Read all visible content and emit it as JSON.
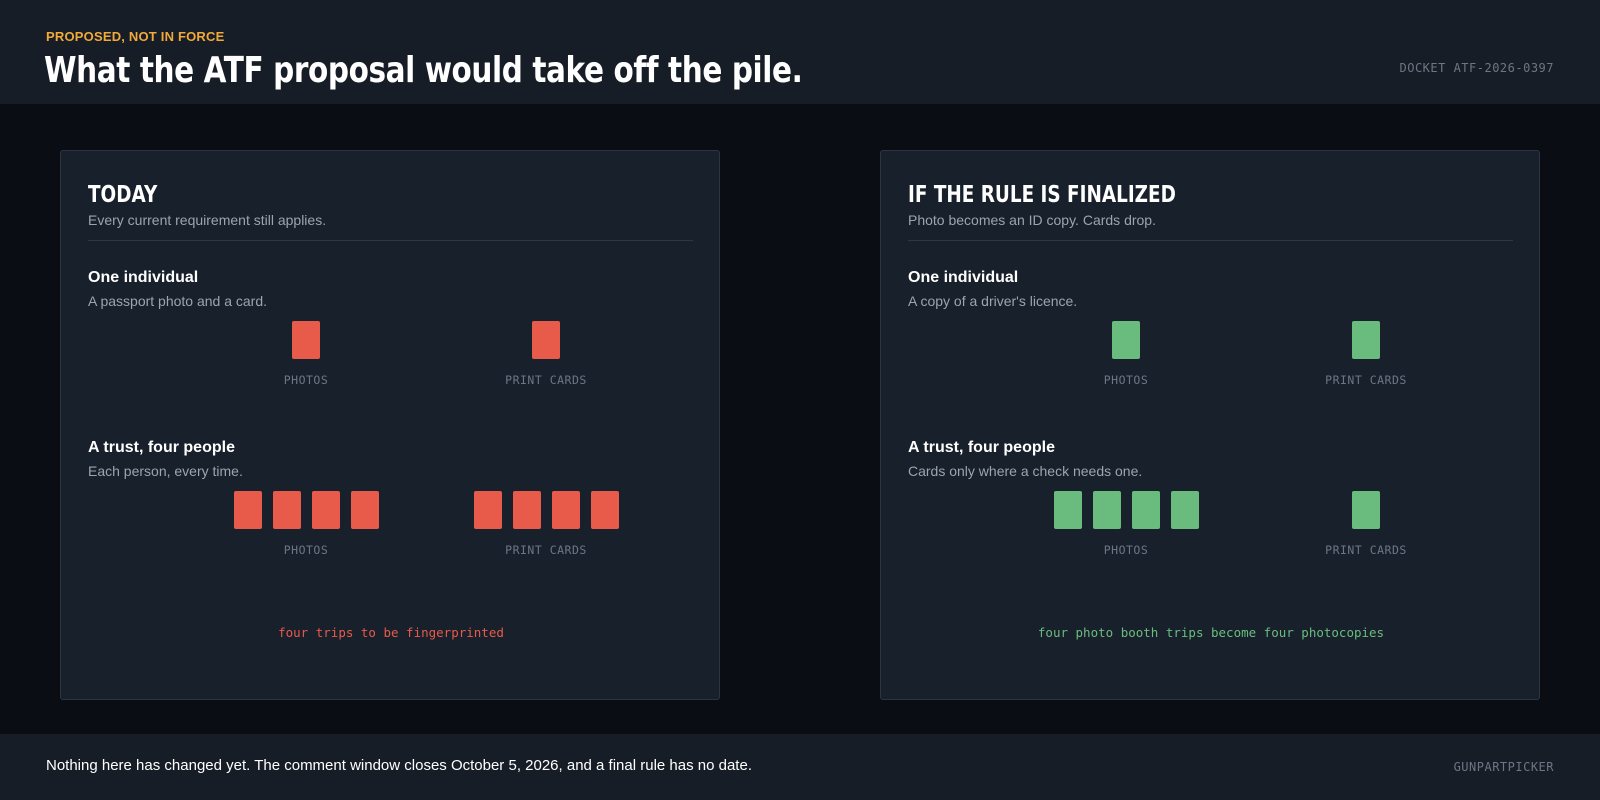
{
  "header": {
    "eyebrow": "PROPOSED, NOT IN FORCE",
    "title": "What the ATF proposal would take off the pile.",
    "docket": "DOCKET ATF-2026-0397"
  },
  "colors": {
    "accent": "#f0a93a",
    "today": "#e85a4a",
    "finalized": "#6abc7e",
    "background": "#0a0e14",
    "panel": "#18202b"
  },
  "panels": {
    "today": {
      "title": "TODAY",
      "subtitle": "Every current requirement still applies.",
      "sections": [
        {
          "heading": "One individual",
          "description": "A passport photo and a card.",
          "photos": {
            "label": "PHOTOS",
            "count": 1
          },
          "print_cards": {
            "label": "PRINT CARDS",
            "count": 1
          }
        },
        {
          "heading": "A trust, four people",
          "description": "Each person, every time.",
          "photos": {
            "label": "PHOTOS",
            "count": 4
          },
          "print_cards": {
            "label": "PRINT CARDS",
            "count": 4
          }
        }
      ],
      "note": "four trips to be fingerprinted"
    },
    "finalized": {
      "title": "IF THE RULE IS FINALIZED",
      "subtitle": "Photo becomes an ID copy. Cards drop.",
      "sections": [
        {
          "heading": "One individual",
          "description": "A copy of a driver's licence.",
          "photos": {
            "label": "PHOTOS",
            "count": 1
          },
          "print_cards": {
            "label": "PRINT CARDS",
            "count": 1
          }
        },
        {
          "heading": "A trust, four people",
          "description": "Cards only where a check needs one.",
          "photos": {
            "label": "PHOTOS",
            "count": 4
          },
          "print_cards": {
            "label": "PRINT CARDS",
            "count": 1
          }
        }
      ],
      "note": "four photo booth trips become four photocopies"
    }
  },
  "footer": {
    "text": "Nothing here has changed yet. The comment window closes October 5, 2026, and a final rule has no date.",
    "brand": "GUNPARTPICKER"
  }
}
